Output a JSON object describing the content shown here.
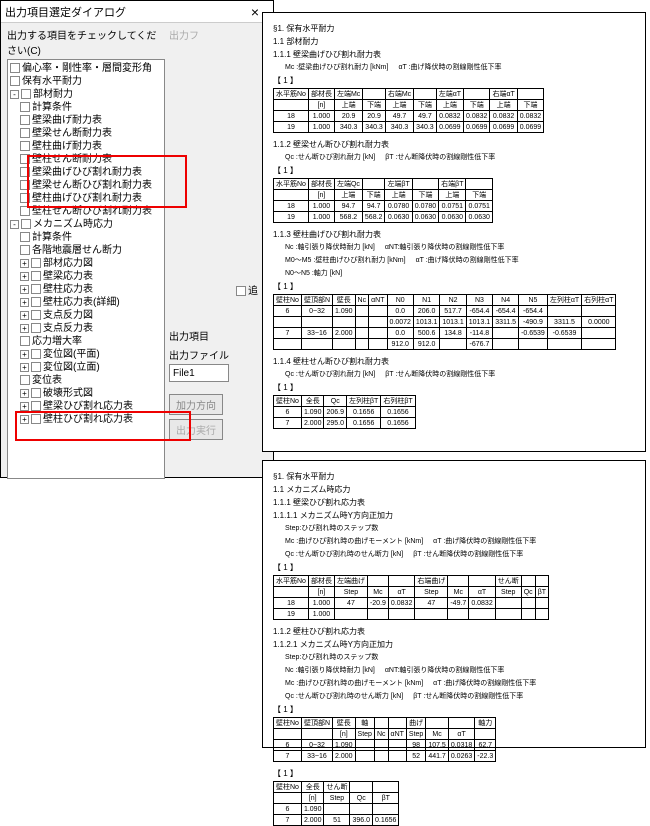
{
  "dialog": {
    "title": "出力項目選定ダイアログ",
    "section_caption": "出力する項目をチェックしてください(C)",
    "right_caption": "出力フ",
    "tree": [
      {
        "exp": "",
        "label": "偏心率・剛性率・層間変形角"
      },
      {
        "exp": "",
        "label": "保有水平耐力"
      },
      {
        "exp": "-",
        "label": "部材耐力",
        "children": [
          {
            "label": "計算条件"
          },
          {
            "label": "壁梁曲げ耐力表"
          },
          {
            "label": "壁梁せん断耐力表"
          },
          {
            "label": "壁柱曲げ耐力表"
          },
          {
            "label": "壁柱せん断耐力表"
          },
          {
            "label": "壁梁曲げひび割れ耐力表"
          },
          {
            "label": "壁梁せん断ひび割れ耐力表"
          },
          {
            "label": "壁柱曲げひび割れ耐力表"
          },
          {
            "label": "壁柱せん断ひび割れ耐力表"
          }
        ]
      },
      {
        "exp": "-",
        "label": "メカニズム時応力",
        "children": [
          {
            "label": "計算条件"
          },
          {
            "label": "各階地震層せん断力"
          },
          {
            "exp": "+",
            "label": "部材応力図"
          },
          {
            "exp": "+",
            "label": "壁梁応力表"
          },
          {
            "exp": "+",
            "label": "壁柱応力表"
          },
          {
            "exp": "+",
            "label": "壁柱応力表(詳細)"
          },
          {
            "exp": "+",
            "label": "支点反力図"
          },
          {
            "exp": "+",
            "label": "支点反力表"
          },
          {
            "label": "応力増大率"
          },
          {
            "exp": "+",
            "label": "変位図(平面)"
          },
          {
            "exp": "+",
            "label": "変位図(立面)"
          },
          {
            "label": "変位表"
          },
          {
            "exp": "+",
            "label": "破壊形式図"
          },
          {
            "exp": "+",
            "label": "壁梁ひび割れ応力表"
          },
          {
            "exp": "+",
            "label": "壁柱ひび割れ応力表"
          }
        ]
      }
    ],
    "right": {
      "lbl1": "出力項目",
      "lbl2": "出力ファイル",
      "file_value": "File1",
      "btn1": "加力方向",
      "btn2": "出力実行"
    },
    "add_opt": "追"
  },
  "doc1": {
    "s1": "§1. 保有水平耐力",
    "s11": "1.1 部材耐力",
    "s111": "1.1.1 壁梁曲げひび割れ耐力表",
    "note1a": "Mc :壁梁曲げひび割れ耐力 [kNm]",
    "note1b": "αT :曲げ降伏時の割線剛性低下率",
    "brkt": "【 1 】",
    "t1": {
      "head1": [
        "水平筋No",
        "部材長",
        "左端Mc",
        "",
        "右端Mc",
        "",
        "左端αT",
        "",
        "右端αT",
        ""
      ],
      "head2": [
        "",
        "[n]",
        "上端",
        "下端",
        "上端",
        "下端",
        "上端",
        "下端",
        "上端",
        "下端"
      ],
      "rows": [
        [
          "18",
          "1.000",
          "20.9",
          "20.9",
          "49.7",
          "49.7",
          "0.0832",
          "0.0832",
          "0.0832",
          "0.0832"
        ],
        [
          "19",
          "1.000",
          "340.3",
          "340.3",
          "340.3",
          "340.3",
          "0.0699",
          "0.0699",
          "0.0699",
          "0.0699"
        ]
      ]
    },
    "s112": "1.1.2 壁梁せん断ひび割れ耐力表",
    "note2a": "Qc :せん断ひび割れ耐力 [kN]",
    "note2b": "βT :せん断降伏時の割線剛性低下率",
    "t2": {
      "head1": [
        "水平筋No",
        "部材長",
        "左端Qc",
        "",
        "左端βT",
        "",
        "右端βT",
        ""
      ],
      "head2": [
        "",
        "[n]",
        "上端",
        "下端",
        "上端",
        "下端",
        "上端",
        "下端"
      ],
      "rows": [
        [
          "18",
          "1.000",
          "94.7",
          "94.7",
          "0.0780",
          "0.0780",
          "0.0751",
          "0.0751"
        ],
        [
          "19",
          "1.000",
          "568.2",
          "568.2",
          "0.0630",
          "0.0630",
          "0.0630",
          "0.0630"
        ]
      ]
    },
    "s113": "1.1.3 壁柱曲げひび割れ耐力表",
    "note3a": "Nc :軸引張り降伏時耐力 [kN]",
    "note3b": "αNT:軸引張り降伏時の割線剛性低下率",
    "note3c": "M0〜M5 :壁柱曲げひび割れ耐力 [kNm]",
    "note3d": "αT :曲げ降伏時の割線剛性低下率",
    "note3e": "N0〜N5 :軸力 [kN]",
    "t3": {
      "head": [
        "壁柱No",
        "壁頂部N",
        "壁長",
        "Nc",
        "αNT",
        "N0",
        "N1",
        "N2",
        "N3",
        "N4",
        "N5",
        "左列柱αT",
        "右列柱αT"
      ],
      "rows": [
        [
          "6",
          "0~32",
          "1.090",
          "",
          "",
          "0.0",
          "206.0",
          "517.7",
          "-654.4",
          "-654.4",
          "-654.4",
          "",
          ""
        ],
        [
          "",
          "",
          "",
          "",
          "",
          "0.0072",
          "1013.1",
          "1013.1",
          "1013.1",
          "3311.5",
          "-490.9",
          "3311.5",
          "0.0000"
        ],
        [
          "7",
          "33~16",
          "2.000",
          "",
          "",
          "0.0",
          "500.6",
          "134.8",
          "-114.8",
          "",
          "-0.6539",
          "-0.6539",
          ""
        ],
        [
          "",
          "",
          "",
          "",
          "",
          "912.0",
          "912.0",
          "",
          "-676.7",
          "",
          "",
          "",
          ""
        ]
      ]
    },
    "s114": "1.1.4 壁柱せん断ひび割れ耐力表",
    "note4a": "Qc :せん断ひび割れ耐力 [kN]",
    "note4b": "βT :せん断降伏時の割線剛性低下率",
    "t4": {
      "head": [
        "壁柱No",
        "全長",
        "Qc",
        "左列柱βT",
        "右列柱βT"
      ],
      "rows": [
        [
          "6",
          "1.090",
          "206.9",
          "0.1656",
          "0.1656"
        ],
        [
          "7",
          "2.000",
          "295.0",
          "0.1656",
          "0.1656"
        ]
      ]
    }
  },
  "doc2": {
    "s1": "§1. 保有水平耐力",
    "s11": "1.1 メカニズム時応力",
    "s111": "1.1.1 壁梁ひび割れ応力表",
    "s1111": "1.1.1.1 メカニズム時Y方向正加力",
    "note1a": "Step:ひび割れ時のステップ数",
    "note1b": "Mc :曲げひび割れ時の曲げモーメント [kNm]",
    "note1c": "αT :曲げ降伏時の割線剛性低下率",
    "note1d": "Qc :せん断ひび割れ時のせん断力 [kN]",
    "note1e": "βT :せん断降伏時の割線剛性低下率",
    "brkt": "【 1 】",
    "t1": {
      "head1": [
        "水平筋No",
        "部材長",
        "左端曲げ",
        "",
        "",
        "右端曲げ",
        "",
        "",
        "せん断",
        "",
        ""
      ],
      "head2": [
        "",
        "[n]",
        "Step",
        "Mc",
        "αT",
        "Step",
        "Mc",
        "αT",
        "Step",
        "Qc",
        "βT"
      ],
      "rows": [
        [
          "18",
          "1.000",
          "47",
          "-20.9",
          "0.0832",
          "47",
          "-49.7",
          "0.0832",
          "",
          "",
          ""
        ],
        [
          "19",
          "1.000",
          "",
          "",
          "",
          "",
          "",
          "",
          "",
          "",
          ""
        ]
      ]
    },
    "s112": "1.1.2 壁柱ひび割れ応力表",
    "s1121": "1.1.2.1 メカニズム時Y方向正加力",
    "note2a": "Step:ひび割れ時のステップ数",
    "note2b": "Nc :軸引張り降伏時耐力 [kN]",
    "note2c": "αNT:軸引張り降伏時の割線剛性低下率",
    "note2d": "Mc :曲げひび割れ時の曲げモーメント [kNm]",
    "note2e": "αT :曲げ降伏時の割線剛性低下率",
    "note2f": "Qc :せん断ひび割れ時のせん断力 [kN]",
    "note2g": "βT :せん断降伏時の割線剛性低下率",
    "t2": {
      "head1": [
        "壁柱No",
        "壁頂部N",
        "壁長",
        "軸",
        "",
        "",
        "曲げ",
        "",
        "",
        "軸力"
      ],
      "head2": [
        "",
        "",
        "[n]",
        "Step",
        "Nc",
        "αNT",
        "Step",
        "Mc",
        "αT",
        ""
      ],
      "rows": [
        [
          "6",
          "0~32",
          "1.090",
          "",
          "",
          "",
          "98",
          "107.5",
          "0.0318",
          "62.7"
        ],
        [
          "7",
          "33~16",
          "2.000",
          "",
          "",
          "",
          "52",
          "441.7",
          "0.0263",
          "-22.3"
        ]
      ]
    },
    "t3": {
      "head1": [
        "壁柱No",
        "全長",
        "せん断",
        "",
        ""
      ],
      "head2": [
        "",
        "[n]",
        "Step",
        "Qc",
        "βT"
      ],
      "rows": [
        [
          "6",
          "1.090",
          "",
          "",
          ""
        ],
        [
          "7",
          "2.000",
          "51",
          "396.0",
          "0.1656"
        ]
      ]
    }
  }
}
